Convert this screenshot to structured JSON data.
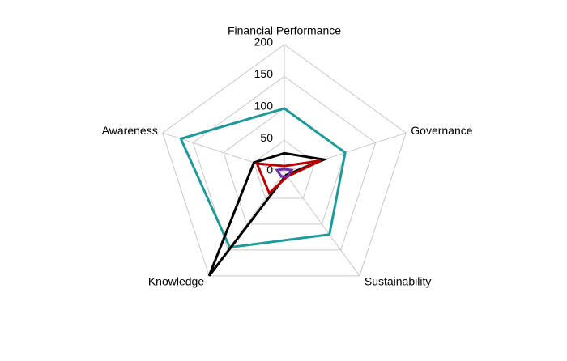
{
  "chart_data": {
    "type": "radar",
    "categories": [
      "Financial Performance",
      "Governance",
      "Sustainability",
      "Knowledge",
      "Awareness"
    ],
    "series": [
      {
        "color": "#1f9a9a",
        "values": [
          100,
          100,
          120,
          145,
          170
        ]
      },
      {
        "color": "#000000",
        "values": [
          30,
          65,
          5,
          200,
          50
        ]
      },
      {
        "color": "#c00000",
        "values": [
          10,
          60,
          8,
          40,
          45
        ]
      },
      {
        "color": "#7030a0",
        "values": [
          5,
          12,
          8,
          8,
          12
        ]
      }
    ],
    "ylim": [
      0,
      200
    ],
    "yticks": [
      0,
      50,
      100,
      150,
      200
    ],
    "grid": true
  }
}
